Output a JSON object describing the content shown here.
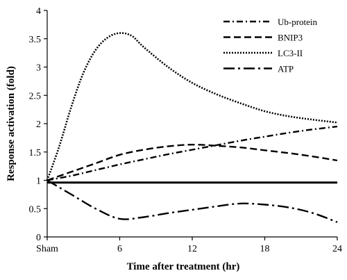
{
  "chart_data": {
    "type": "line",
    "xlabel": "Time after treatment (hr)",
    "ylabel": "Response activation (fold)",
    "categories": [
      "Sham",
      "6",
      "12",
      "18",
      "24"
    ],
    "xlim": [
      0,
      24
    ],
    "ylim": [
      0,
      4
    ],
    "yticks": [
      "0",
      "0.5",
      "1",
      "1.5",
      "2",
      "2.5",
      "3",
      "3.5",
      "4"
    ],
    "grid": false,
    "legend_position": "top-right",
    "baseline": 0.96,
    "series": [
      {
        "name": "Ub-protein",
        "dash": "dashdot",
        "x": [
          0,
          2,
          4,
          6,
          8,
          10,
          12,
          14,
          16,
          18,
          20,
          22,
          24
        ],
        "y": [
          1.0,
          1.08,
          1.18,
          1.28,
          1.37,
          1.46,
          1.54,
          1.62,
          1.7,
          1.77,
          1.84,
          1.9,
          1.95
        ]
      },
      {
        "name": "BNIP3",
        "dash": "dash",
        "x": [
          0,
          2,
          4,
          6,
          8,
          10,
          12,
          14,
          16,
          18,
          20,
          22,
          24
        ],
        "y": [
          1.0,
          1.15,
          1.3,
          1.45,
          1.54,
          1.6,
          1.63,
          1.61,
          1.58,
          1.53,
          1.48,
          1.42,
          1.35
        ]
      },
      {
        "name": "LC3-II",
        "dash": "dot",
        "x": [
          0,
          1,
          2,
          3,
          4,
          5,
          6,
          7,
          8,
          10,
          12,
          14,
          16,
          18,
          20,
          22,
          24
        ],
        "y": [
          1.0,
          1.6,
          2.3,
          2.9,
          3.3,
          3.52,
          3.6,
          3.55,
          3.35,
          3.0,
          2.72,
          2.52,
          2.36,
          2.22,
          2.13,
          2.07,
          2.02
        ]
      },
      {
        "name": "ATP",
        "dash": "longdashdot",
        "x": [
          0,
          2,
          4,
          6,
          8,
          10,
          12,
          14,
          16,
          18,
          20,
          22,
          24
        ],
        "y": [
          1.0,
          0.75,
          0.5,
          0.32,
          0.35,
          0.42,
          0.48,
          0.54,
          0.59,
          0.57,
          0.52,
          0.42,
          0.26
        ]
      }
    ]
  }
}
